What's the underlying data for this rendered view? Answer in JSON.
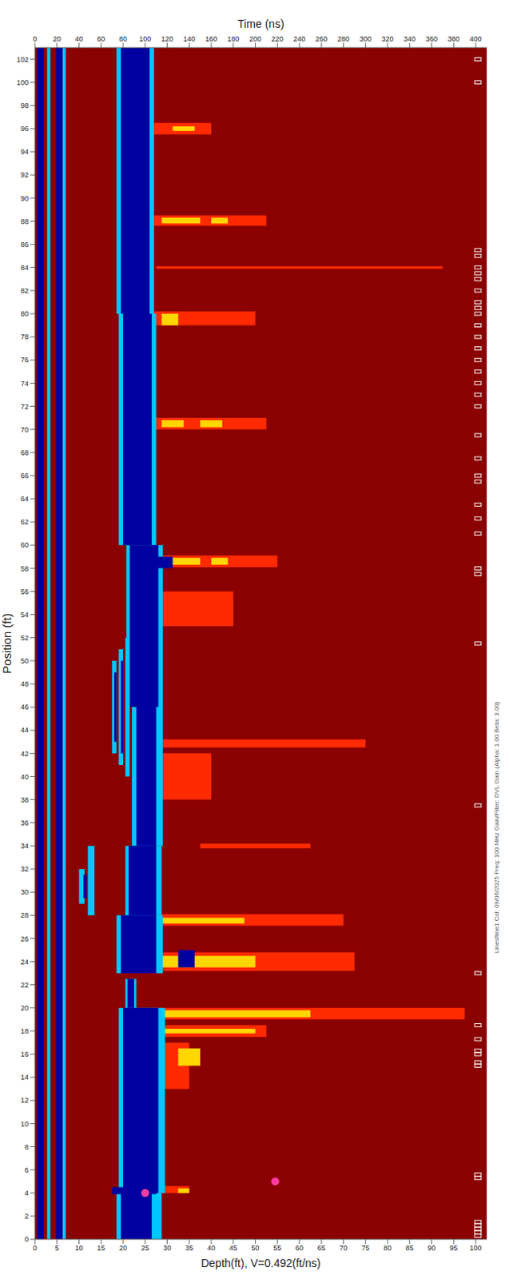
{
  "chart_data": {
    "type": "heatmap",
    "x_label": "Time (ns)",
    "x2_label": "Depth(ft), V=0.492(ft/ns)",
    "y_label": "Position (ft)",
    "annotation": "Linesfline1 Col: 09/06/2025 Freq: 100 MHz Gain/Filter: DVL Gain (Alpha: 1.00 Beta: 3.00)",
    "xlim": [
      0,
      410
    ],
    "xticks": [
      0,
      20,
      40,
      60,
      80,
      100,
      120,
      140,
      160,
      180,
      200,
      220,
      240,
      260,
      280,
      300,
      320,
      340,
      360,
      380,
      400
    ],
    "x2lim": [
      0,
      102.5
    ],
    "x2ticks": [
      0,
      5,
      10,
      15,
      20,
      25,
      30,
      35,
      40,
      45,
      50,
      55,
      60,
      65,
      70,
      75,
      80,
      85,
      90,
      95,
      100
    ],
    "ylim": [
      0,
      103
    ],
    "yticks": [
      0,
      2,
      4,
      6,
      8,
      10,
      12,
      14,
      16,
      18,
      20,
      22,
      24,
      26,
      28,
      30,
      32,
      34,
      36,
      38,
      40,
      42,
      44,
      46,
      48,
      50,
      52,
      54,
      56,
      58,
      60,
      62,
      64,
      66,
      68,
      70,
      72,
      74,
      76,
      78,
      80,
      82,
      84,
      86,
      88,
      90,
      92,
      94,
      96,
      98,
      100,
      102
    ],
    "layers": [
      {
        "color": "#8b0000",
        "cells": [
          [
            0,
            410,
            0,
            103
          ]
        ]
      },
      {
        "color": "#ff2a00",
        "cells": [
          [
            106,
            210,
            87.6,
            88.5
          ],
          [
            110,
            370,
            83.9,
            84.1
          ],
          [
            106,
            210,
            70,
            71
          ],
          [
            106,
            220,
            58.1,
            59.1
          ],
          [
            106,
            280,
            27.1,
            28.1
          ],
          [
            106,
            290,
            23.2,
            24.8
          ],
          [
            106,
            390,
            19,
            20
          ],
          [
            106,
            210,
            17.5,
            18.5
          ],
          [
            106,
            160,
            95.5,
            96.5
          ],
          [
            106,
            200,
            79,
            80.2
          ],
          [
            106,
            140,
            4,
            4.6
          ],
          [
            106,
            180,
            53,
            56
          ],
          [
            106,
            160,
            38,
            42
          ],
          [
            106,
            140,
            13,
            17
          ],
          [
            106,
            300,
            42.5,
            43.2
          ],
          [
            150,
            250,
            33.8,
            34.2
          ]
        ]
      },
      {
        "color": "#ffd700",
        "cells": [
          [
            115,
            150,
            87.8,
            88.3
          ],
          [
            160,
            175,
            87.8,
            88.3
          ],
          [
            115,
            135,
            70.2,
            70.8
          ],
          [
            150,
            170,
            70.2,
            70.8
          ],
          [
            115,
            150,
            58.3,
            58.9
          ],
          [
            160,
            175,
            58.3,
            58.9
          ],
          [
            115,
            190,
            27.3,
            27.8
          ],
          [
            110,
            200,
            23.5,
            24.5
          ],
          [
            115,
            250,
            19.2,
            19.8
          ],
          [
            115,
            200,
            17.8,
            18.2
          ],
          [
            125,
            145,
            95.8,
            96.2
          ],
          [
            115,
            130,
            79,
            80
          ],
          [
            130,
            140,
            4,
            4.4
          ],
          [
            130,
            150,
            15,
            16.5
          ]
        ]
      },
      {
        "color": "#00c8ff",
        "cells": [
          [
            11,
            14,
            0,
            103
          ],
          [
            25,
            28,
            0,
            103
          ],
          [
            74,
            115,
            0,
            4
          ],
          [
            76,
            118,
            4,
            20
          ],
          [
            82,
            92,
            20,
            22.5
          ],
          [
            74,
            116,
            23,
            28
          ],
          [
            82,
            115,
            28,
            34
          ],
          [
            88,
            116,
            34,
            46
          ],
          [
            83,
            116,
            46,
            60
          ],
          [
            76,
            110,
            60,
            80
          ],
          [
            74,
            108,
            80,
            103
          ],
          [
            40,
            45,
            29,
            32
          ],
          [
            48,
            54,
            28,
            34
          ],
          [
            70,
            74,
            42,
            50
          ],
          [
            76,
            80,
            41,
            51
          ],
          [
            82,
            86,
            40,
            52
          ]
        ]
      },
      {
        "color": "#0000a0",
        "cells": [
          [
            2,
            8,
            0,
            103
          ],
          [
            19,
            25,
            0,
            103
          ],
          [
            78,
            106,
            0,
            4
          ],
          [
            80,
            112,
            4,
            20
          ],
          [
            84,
            90,
            20,
            22.5
          ],
          [
            78,
            110,
            23,
            28
          ],
          [
            85,
            110,
            28,
            34
          ],
          [
            92,
            110,
            34,
            46
          ],
          [
            86,
            112,
            46,
            60
          ],
          [
            80,
            106,
            60,
            80
          ],
          [
            78,
            104,
            80,
            103
          ],
          [
            70,
            110,
            3.9,
            4.5
          ],
          [
            130,
            145,
            23.5,
            25
          ],
          [
            100,
            125,
            58,
            59
          ],
          [
            44,
            47,
            29.5,
            31.5
          ],
          [
            72,
            74,
            43,
            49
          ],
          [
            78,
            80,
            42,
            50
          ]
        ]
      }
    ],
    "markers": {
      "x": 402,
      "color": "#ffffff",
      "positions": [
        0.3,
        0.6,
        0.9,
        1.2,
        1.5,
        5.3,
        5.6,
        15,
        15.3,
        16,
        16.3,
        17.3,
        18.5,
        23,
        37.5,
        51.5,
        57.5,
        58,
        61,
        62.3,
        63.5,
        65.5,
        66,
        67.5,
        69.5,
        72,
        73,
        74,
        75,
        76,
        77,
        78,
        79,
        80,
        80.5,
        81,
        82,
        83,
        83.5,
        84,
        85,
        85.5,
        100,
        102
      ]
    },
    "points": {
      "color": "#ff3ca0",
      "x": [
        100,
        218
      ],
      "y": [
        4,
        5
      ]
    }
  }
}
